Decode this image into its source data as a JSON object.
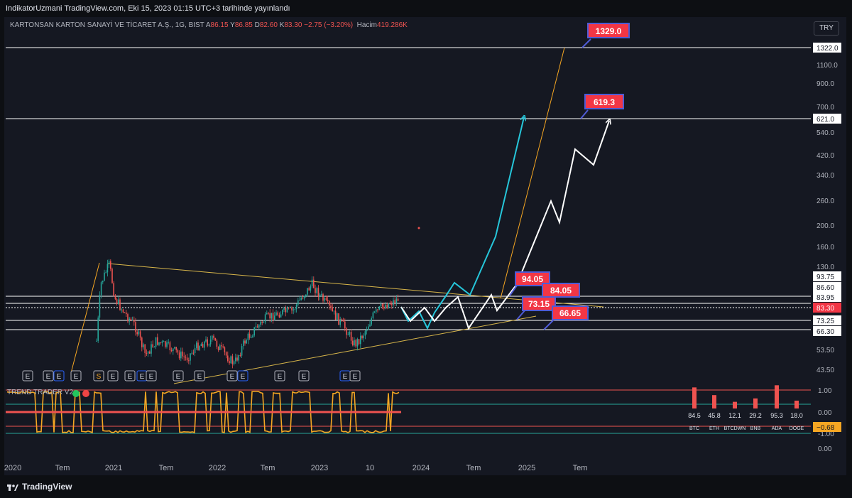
{
  "header": {
    "publish_text": "IndikatorUzmani TradingView.com, Eki 15, 2023 01:15 UTC+3 tarihinde yayınlandı"
  },
  "legend": {
    "symbol": "KARTONSAN KARTON SANAYİ VE TİCARET A.Ş., 1G, BIST",
    "o_label": "A",
    "o_value": "86.15",
    "h_label": "Y",
    "h_value": "86.85",
    "l_label": "D",
    "l_value": "82.60",
    "c_label": "K",
    "c_value": "83.30",
    "change": "−2.75 (−3.20%)",
    "volume_label": "Hacim",
    "volume_value": "419.286K"
  },
  "currency_button": "TRY",
  "indicator": {
    "title": "TREND TRADER V2",
    "axis_labels": [
      "1.00",
      "0.00",
      "-1.00",
      "0.00"
    ],
    "current_value": "−0.68",
    "table": [
      {
        "name": "BTC",
        "value": "84.5"
      },
      {
        "name": "ETH",
        "value": "45.8"
      },
      {
        "name": "BTCDWN",
        "value": "12.1"
      },
      {
        "name": "BNB",
        "value": "29.2"
      },
      {
        "name": "ADA",
        "value": "95.3"
      },
      {
        "name": "DOGE",
        "value": "18.0"
      }
    ]
  },
  "earnings_markers": [
    "E",
    "E",
    "E",
    "E",
    "S",
    "E",
    "E",
    "E",
    "E",
    "E",
    "E",
    "E",
    "E",
    "E",
    "E",
    "E",
    "E"
  ],
  "price_axis_labels": [
    "1322.0",
    "1100.0",
    "900.0",
    "700.0",
    "621.0",
    "540.0",
    "420.0",
    "340.0",
    "260.0",
    "200.0",
    "160.0",
    "130.0",
    "93.75",
    "86.60",
    "83.95",
    "83.30",
    "73.25",
    "66.30",
    "53.50",
    "43.50"
  ],
  "time_axis_labels": [
    "2020",
    "Tem",
    "2021",
    "Tem",
    "2022",
    "Tem",
    "2023",
    "10",
    "2024",
    "Tem",
    "2025",
    "Tem"
  ],
  "target_callouts": [
    "1329.0",
    "619.3",
    "94.05",
    "84.05",
    "73.15",
    "66.65"
  ],
  "footer": {
    "brand": "TradingView"
  },
  "colors": {
    "background": "#151822",
    "up_candle": "#26a69a",
    "down_candle": "#ef5350",
    "callout": "#f23645",
    "trend_line": "#d8b64a",
    "projection_cyan": "#26c6da",
    "projection_orange": "#f5a623"
  },
  "chart_data": {
    "type": "candlestick",
    "scale": "log",
    "horizontal_levels": [
      1322.0,
      621.0,
      93.75,
      86.6,
      83.95,
      73.25,
      66.3
    ],
    "last_price": 83.3,
    "targets": [
      1329.0,
      619.3,
      94.05,
      84.05,
      73.15,
      66.65
    ],
    "indicator_table": {
      "categories": [
        "BTC",
        "ETH",
        "BTCDWN",
        "BNB",
        "ADA",
        "DOGE"
      ],
      "values": [
        84.5,
        45.8,
        12.1,
        29.2,
        95.3,
        18.0
      ]
    }
  }
}
